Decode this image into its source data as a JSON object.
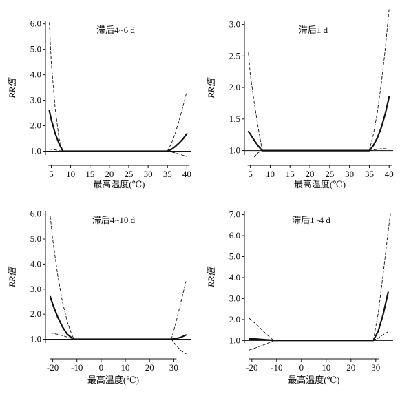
{
  "chart_data": [
    {
      "type": "line",
      "title": "滞后4~6 d",
      "xlabel": "最高温度(℃)",
      "ylabel": "RR值",
      "x_ticks": [
        5,
        10,
        15,
        20,
        25,
        30,
        35,
        40
      ],
      "y_ticks": [
        "1.0",
        "2.0",
        "3.0",
        "4.0",
        "5.0",
        "6.0"
      ],
      "xlim": [
        3.5,
        41
      ],
      "ylim": [
        0.85,
        6.1
      ],
      "series": [
        {
          "style": "solid",
          "x": [
            4.5,
            5,
            6,
            7,
            8,
            10,
            20,
            30,
            35,
            36,
            37,
            38,
            39,
            40
          ],
          "y": [
            2.6,
            2.25,
            1.7,
            1.3,
            1.0,
            1.0,
            1.0,
            1.0,
            1.0,
            1.07,
            1.18,
            1.32,
            1.48,
            1.68
          ]
        },
        {
          "style": "dashed",
          "x": [
            4.5,
            5,
            6,
            7,
            8
          ],
          "y": [
            6.05,
            4.5,
            2.7,
            1.5,
            1.0
          ]
        },
        {
          "style": "dashed",
          "x": [
            35,
            36,
            37,
            38,
            39,
            40
          ],
          "y": [
            1.0,
            1.3,
            1.7,
            2.2,
            2.75,
            3.35
          ]
        },
        {
          "style": "dashed",
          "x": [
            4.5,
            5,
            6,
            7,
            8
          ],
          "y": [
            1.08,
            1.07,
            1.05,
            1.02,
            1.0
          ]
        },
        {
          "style": "dashed",
          "x": [
            35,
            36,
            37,
            38,
            39,
            40
          ],
          "y": [
            1.0,
            0.97,
            0.93,
            0.89,
            0.84,
            0.79
          ]
        }
      ]
    },
    {
      "type": "line",
      "title": "滞后1 d",
      "xlabel": "最高温度(℃)",
      "ylabel": "RR值",
      "x_ticks": [
        5,
        10,
        15,
        20,
        25,
        30,
        35,
        40
      ],
      "y_ticks": [
        "1.0",
        "1.5",
        "2.0",
        "2.5",
        "3.0"
      ],
      "xlim": [
        3.5,
        41
      ],
      "ylim": [
        0.93,
        3.05
      ],
      "series": [
        {
          "style": "solid",
          "x": [
            4.5,
            5,
            6,
            7,
            8,
            10,
            20,
            30,
            35,
            36,
            37,
            38,
            39,
            40
          ],
          "y": [
            1.3,
            1.26,
            1.16,
            1.07,
            1.0,
            1.0,
            1.0,
            1.0,
            1.0,
            1.08,
            1.2,
            1.36,
            1.58,
            1.85
          ]
        },
        {
          "style": "dashed",
          "x": [
            4.5,
            5,
            6,
            7,
            8
          ],
          "y": [
            2.55,
            2.2,
            1.75,
            1.35,
            1.0
          ]
        },
        {
          "style": "dashed",
          "x": [
            6,
            7,
            8
          ],
          "y": [
            0.9,
            0.97,
            1.0
          ]
        },
        {
          "style": "dashed",
          "x": [
            35,
            36,
            37,
            38,
            39,
            40
          ],
          "y": [
            1.0,
            1.25,
            1.6,
            2.05,
            2.6,
            3.25
          ]
        },
        {
          "style": "dashed",
          "x": [
            35,
            36,
            37,
            38,
            39,
            40
          ],
          "y": [
            1.0,
            1.01,
            1.02,
            1.03,
            1.03,
            1.02
          ]
        }
      ]
    },
    {
      "type": "line",
      "title": "滞后4~10 d",
      "xlabel": "最高温度(℃)",
      "ylabel": "RR值",
      "x_ticks": [
        -20,
        -10,
        0,
        10,
        20,
        30
      ],
      "y_ticks": [
        "1.0",
        "2.0",
        "3.0",
        "4.0",
        "5.0",
        "6.0"
      ],
      "xlim": [
        -23,
        37
      ],
      "ylim": [
        0.85,
        6.1
      ],
      "series": [
        {
          "style": "solid",
          "x": [
            -21,
            -20,
            -18,
            -16,
            -14,
            -12,
            -11,
            0,
            20,
            29,
            31,
            33,
            35
          ],
          "y": [
            2.7,
            2.4,
            1.9,
            1.5,
            1.2,
            1.05,
            1.0,
            1.0,
            1.0,
            1.0,
            1.03,
            1.08,
            1.17
          ]
        },
        {
          "style": "dashed",
          "x": [
            -21,
            -20,
            -18,
            -16,
            -14,
            -12,
            -11
          ],
          "y": [
            5.9,
            5.0,
            3.6,
            2.5,
            1.7,
            1.15,
            1.0
          ]
        },
        {
          "style": "dashed",
          "x": [
            -21,
            -18,
            -15,
            -12,
            -11
          ],
          "y": [
            1.25,
            1.2,
            1.12,
            1.03,
            1.0
          ]
        },
        {
          "style": "dashed",
          "x": [
            29,
            31,
            33,
            35
          ],
          "y": [
            1.0,
            1.7,
            2.5,
            3.3
          ]
        },
        {
          "style": "dashed",
          "x": [
            29,
            31,
            33,
            35
          ],
          "y": [
            1.0,
            0.75,
            0.55,
            0.42
          ]
        }
      ]
    },
    {
      "type": "line",
      "title": "滞后1~4 d",
      "xlabel": "最高温度(℃)",
      "ylabel": "RR值",
      "x_ticks": [
        -20,
        -10,
        0,
        10,
        20,
        30
      ],
      "y_ticks": [
        "1.0",
        "2.0",
        "3.0",
        "4.0",
        "5.0",
        "6.0",
        "7.0"
      ],
      "xlim": [
        -23,
        37
      ],
      "ylim": [
        0.88,
        7.15
      ],
      "series": [
        {
          "style": "solid",
          "x": [
            -21,
            -18,
            -15,
            -12,
            -11,
            0,
            20,
            29,
            31,
            33,
            35
          ],
          "y": [
            1.08,
            1.07,
            1.04,
            1.01,
            1.0,
            1.0,
            1.0,
            1.0,
            1.45,
            2.25,
            3.3
          ]
        },
        {
          "style": "dashed",
          "x": [
            -21,
            -18,
            -15,
            -12,
            -11
          ],
          "y": [
            2.05,
            1.75,
            1.4,
            1.08,
            1.0
          ]
        },
        {
          "style": "dashed",
          "x": [
            -21,
            -18,
            -15,
            -12,
            -11
          ],
          "y": [
            0.55,
            0.67,
            0.8,
            0.95,
            1.0
          ]
        },
        {
          "style": "dashed",
          "x": [
            29,
            31,
            33,
            35,
            36
          ],
          "y": [
            1.0,
            2.3,
            4.2,
            6.2,
            7.1
          ]
        },
        {
          "style": "dashed",
          "x": [
            29,
            31,
            33,
            35
          ],
          "y": [
            1.0,
            1.12,
            1.28,
            1.42
          ]
        }
      ]
    }
  ]
}
